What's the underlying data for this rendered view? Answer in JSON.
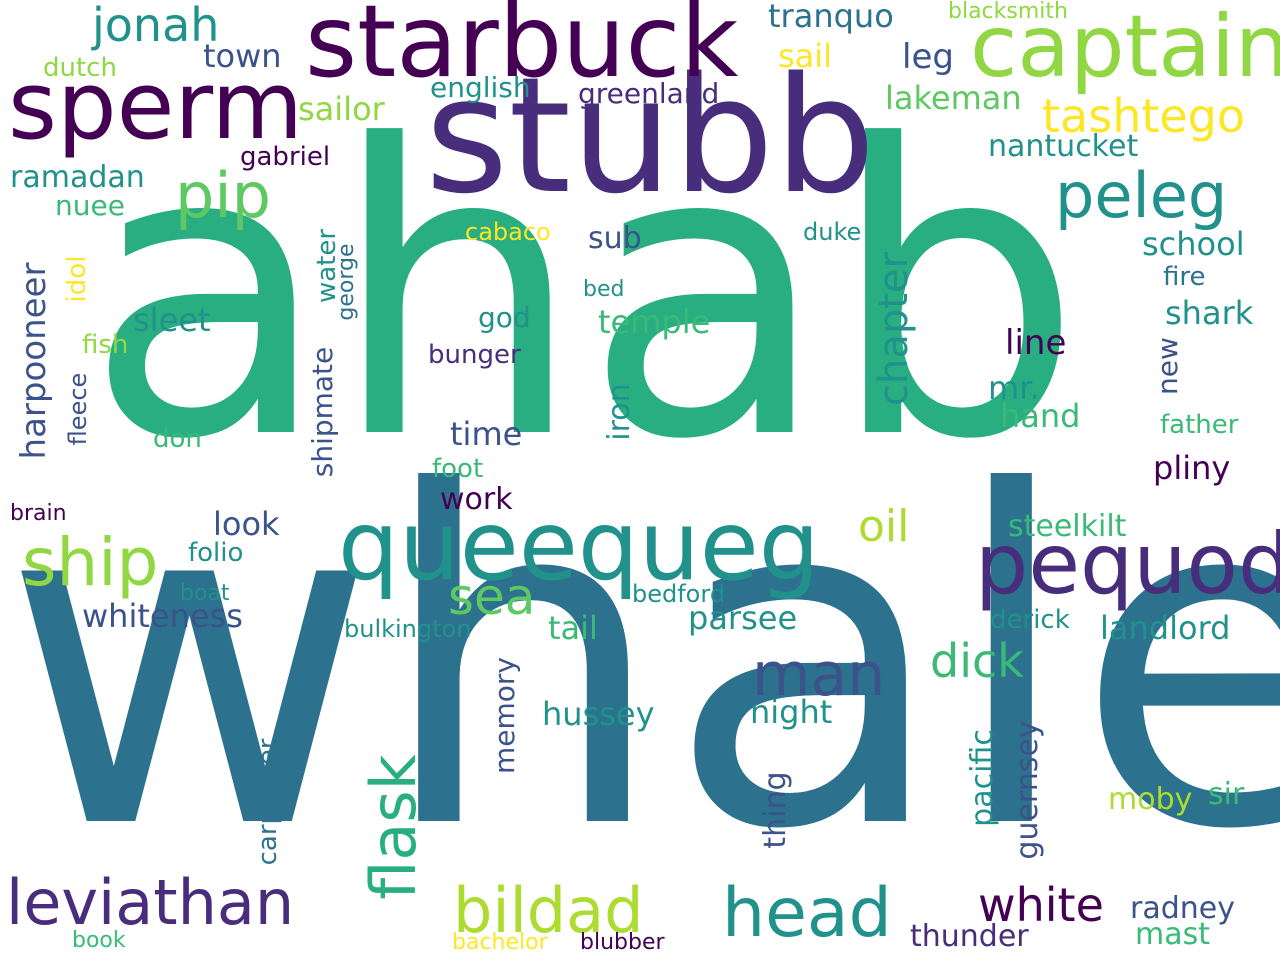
{
  "palette": {
    "p1": "#440154",
    "p2": "#472d7b",
    "p3": "#3b528b",
    "p4": "#2c728e",
    "p5": "#21918c",
    "p6": "#28ae80",
    "p7": "#5ec962",
    "p8": "#addc30",
    "p9": "#fde725",
    "p10": "#90d743",
    "p11": "#3aba76",
    "p12": "#31688e"
  },
  "words": {
    "ahab": "ahab",
    "whale": "whale",
    "stubb": "stubb",
    "starbuck": "starbuck",
    "sperm": "sperm",
    "captain": "captain",
    "queequeg": "queequeg",
    "pequod": "pequod",
    "head": "head",
    "leviathan": "leviathan",
    "bildad": "bildad",
    "flask": "flask",
    "ship": "ship",
    "pip": "pip",
    "peleg": "peleg",
    "jonah": "jonah",
    "man": "man",
    "tashtego": "tashtego",
    "chapter": "chapter",
    "sea": "sea",
    "harpooneer": "harpooneer",
    "white": "white",
    "dick": "dick",
    "oil": "oil",
    "lakeman": "lakeman",
    "tranquo": "tranquo",
    "sail": "sail",
    "leg": "leg",
    "town": "town",
    "sailor": "sailor",
    "whiteness": "whiteness",
    "shipmate": "shipmate",
    "landlord": "landlord",
    "hussey": "hussey",
    "night": "night",
    "line": "line",
    "time": "time",
    "school": "school",
    "shark": "shark",
    "ramadan": "ramadan",
    "sleet": "sleet",
    "temple": "temple",
    "steelkilt": "steelkilt",
    "moby": "moby",
    "radney": "radney",
    "mast": "mast",
    "thunder": "thunder",
    "pacific": "pacific",
    "guernsey": "guernsey",
    "memory": "memory",
    "nantucket": "nantucket",
    "english": "english",
    "greenland": "greenland",
    "gabriel": "gabriel",
    "nuee": "nuee",
    "cabaco": "cabaco",
    "sub": "sub",
    "duke": "duke",
    "water": "water",
    "george": "george",
    "idol": "idol",
    "fish": "fish",
    "god": "god",
    "bunger": "bunger",
    "mr": "mr.",
    "hand": "hand",
    "fleece": "fleece",
    "don": "don",
    "iron": "iron",
    "foot": "foot",
    "work": "work",
    "pliny": "pliny",
    "brain": "brain",
    "look": "look",
    "folio": "folio",
    "boat": "boat",
    "bedford": "bedford",
    "parsee": "parsee",
    "tail": "tail",
    "bulkington": "bulkington",
    "derick": "derick",
    "carpenter": "carpenter",
    "thing": "thing",
    "sir": "sir",
    "father": "father",
    "new": "new",
    "fire": "fire",
    "bed": "bed",
    "book": "book",
    "bachelor": "bachelor",
    "blubber": "blubber",
    "blacksmith": "blacksmith",
    "dutch": "dutch"
  }
}
